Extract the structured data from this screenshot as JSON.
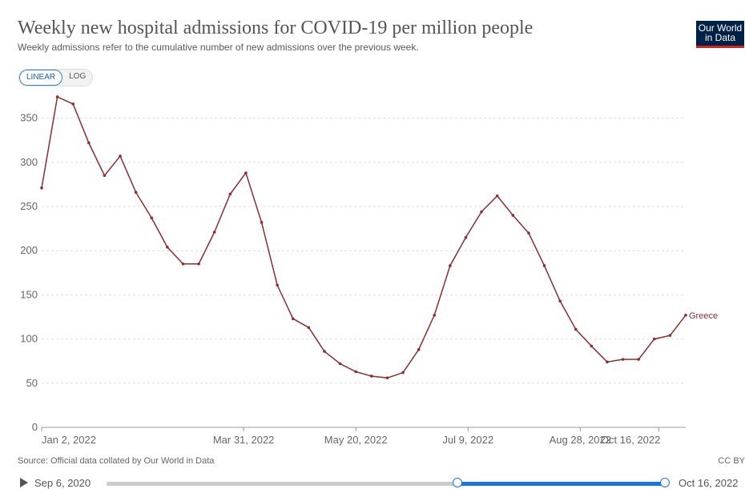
{
  "title": "Weekly new hospital admissions for COVID-19 per million people",
  "subtitle": "Weekly admissions refer to the cumulative number of new admissions over the previous week.",
  "logo": {
    "line1": "Our World",
    "line2": "in Data"
  },
  "scale_toggle": {
    "linear": "LINEAR",
    "log": "LOG",
    "selected": "LINEAR"
  },
  "source": "Source: Official data collated by Our World in Data",
  "license": "CC BY",
  "timeline": {
    "start": "Sep 6, 2020",
    "end": "Oct 16, 2022"
  },
  "colors": {
    "series": "#8b2e32",
    "grid": "#dddddd",
    "accent": "#1a73e8"
  },
  "chart_data": {
    "type": "line",
    "x_tick_labels": [
      "Jan 2, 2022",
      "Mar 31, 2022",
      "May 20, 2022",
      "Jul 9, 2022",
      "Aug 28, 2022",
      "Oct 16, 2022"
    ],
    "x_tick_index": [
      0,
      18,
      28,
      38,
      48,
      55
    ],
    "y_ticks": [
      0,
      50,
      100,
      150,
      200,
      250,
      300,
      350
    ],
    "ylim": [
      0,
      375
    ],
    "grid": true,
    "series": [
      {
        "name": "Greece",
        "values": [
          271,
          374,
          366,
          322,
          285,
          307,
          266,
          237,
          204,
          185,
          185,
          221,
          264,
          288,
          232,
          161,
          123,
          113,
          86,
          72,
          63,
          58,
          56,
          62,
          88,
          127,
          183,
          215,
          244,
          262,
          240,
          220,
          183,
          143,
          111,
          92,
          74,
          77,
          77,
          100,
          104,
          127
        ]
      }
    ],
    "x_index": [
      0,
      1.4,
      2.8,
      4.2,
      5.6,
      7,
      8.4,
      9.8,
      11.2,
      12.6,
      14,
      15.4,
      16.8,
      18.2,
      19.6,
      21,
      22.4,
      23.8,
      25.2,
      26.6,
      28,
      29.4,
      30.8,
      32.2,
      33.6,
      35,
      36.4,
      37.8,
      39.2,
      40.6,
      42,
      43.4,
      44.8,
      46.2,
      47.6,
      49,
      50.4,
      51.8,
      53.2,
      54.6,
      56,
      57.4
    ]
  }
}
